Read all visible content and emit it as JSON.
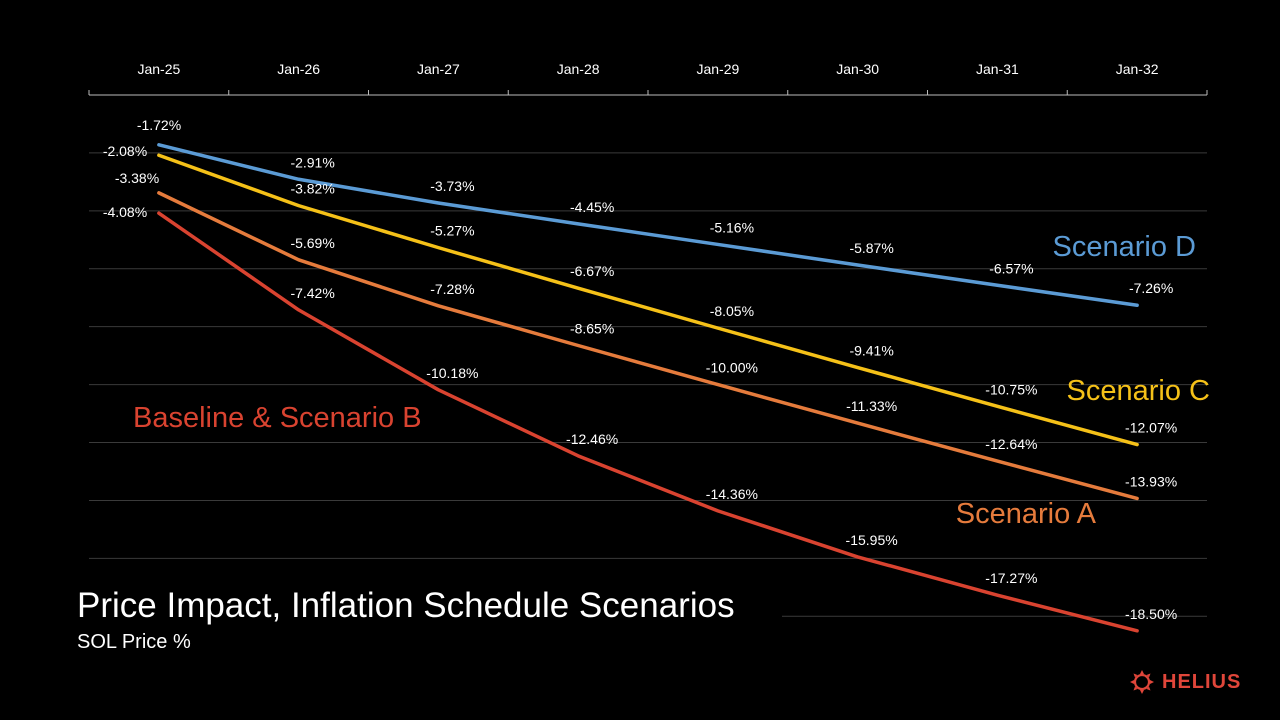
{
  "chart_data": {
    "type": "line",
    "title": "Price Impact, Inflation Schedule Scenarios",
    "subtitle": "SOL Price %",
    "categories": [
      "Jan-25",
      "Jan-26",
      "Jan-27",
      "Jan-28",
      "Jan-29",
      "Jan-30",
      "Jan-31",
      "Jan-32"
    ],
    "ylim": [
      -18,
      0
    ],
    "grid": true,
    "x_axis_position": "top",
    "series": [
      {
        "name": "Scenario D",
        "color": "#5b9bd5",
        "values": [
          -1.72,
          -2.91,
          -3.73,
          -4.45,
          -5.16,
          -5.87,
          -6.57,
          -7.26
        ],
        "labels": [
          "-1.72%",
          "-2.91%",
          "-3.73%",
          "-4.45%",
          "-5.16%",
          "-5.87%",
          "-6.57%",
          "-7.26%"
        ]
      },
      {
        "name": "Scenario C",
        "color": "#f5c118",
        "values": [
          -2.08,
          -3.82,
          -5.27,
          -6.67,
          -8.05,
          -9.41,
          -10.75,
          -12.07
        ],
        "labels": [
          "-2.08%",
          "-3.82%",
          "-5.27%",
          "-6.67%",
          "-8.05%",
          "-9.41%",
          "-10.75%",
          "-12.07%"
        ]
      },
      {
        "name": "Scenario A",
        "color": "#e57b3c",
        "values": [
          -3.38,
          -5.69,
          -7.28,
          -8.65,
          -10.0,
          -11.33,
          -12.64,
          -13.93
        ],
        "labels": [
          "-3.38%",
          "-5.69%",
          "-7.28%",
          "-8.65%",
          "-10.00%",
          "-11.33%",
          "-12.64%",
          "-13.93%"
        ]
      },
      {
        "name": "Baseline & Scenario B",
        "color": "#d94330",
        "values": [
          -4.08,
          -7.42,
          -10.18,
          -12.46,
          -14.36,
          -15.95,
          -17.27,
          -18.5
        ],
        "labels": [
          "-4.08%",
          "-7.42%",
          "-10.18%",
          "-12.46%",
          "-14.36%",
          "-15.95%",
          "-17.27%",
          "-18.50%"
        ]
      }
    ]
  },
  "brand": {
    "name": "HELIUS",
    "color": "#e0463a"
  }
}
